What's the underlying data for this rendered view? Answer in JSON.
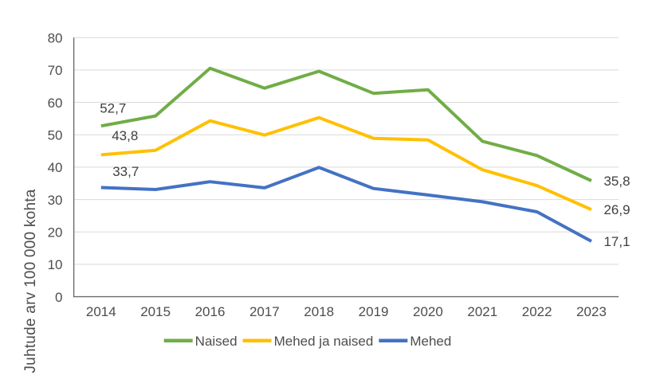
{
  "chart_data": {
    "type": "line",
    "title": "",
    "xlabel": "",
    "ylabel": "Juhtude arv 100 000 kohta",
    "ylim": [
      0,
      80
    ],
    "ytick_step": 10,
    "yticks": [
      "0",
      "10",
      "20",
      "30",
      "40",
      "50",
      "60",
      "70",
      "80"
    ],
    "categories": [
      "2014",
      "2015",
      "2016",
      "2017",
      "2018",
      "2019",
      "2020",
      "2021",
      "2022",
      "2023"
    ],
    "grid": "horizontal",
    "legend_position": "bottom",
    "decimal_separator": ",",
    "series": [
      {
        "name": "Naised",
        "color": "#70AD47",
        "values": [
          52.7,
          55.8,
          70.5,
          64.4,
          69.6,
          62.8,
          63.9,
          48.0,
          43.6,
          35.8
        ],
        "first_point_label": "52,7",
        "last_point_label": "35,8"
      },
      {
        "name": "Mehed ja naised",
        "color": "#FFC000",
        "values": [
          43.8,
          45.2,
          54.3,
          49.9,
          55.3,
          48.9,
          48.4,
          39.2,
          34.3,
          26.9
        ],
        "first_point_label": "43,8",
        "last_point_label": "26,9"
      },
      {
        "name": "Mehed",
        "color": "#4472C4",
        "values": [
          33.7,
          33.1,
          35.5,
          33.6,
          39.9,
          33.4,
          31.4,
          29.3,
          26.2,
          17.1
        ],
        "first_point_label": "33,7",
        "last_point_label": "17,1"
      }
    ]
  },
  "colors": {
    "background": "#FFFFFF",
    "grid": "#D9D9D9",
    "axis": "#6B6B6B",
    "tick_text": "#4D4D4D",
    "data_label_text": "#404040",
    "legend_text": "#4D4D4D",
    "axis_title_text": "#4D4D4D"
  }
}
